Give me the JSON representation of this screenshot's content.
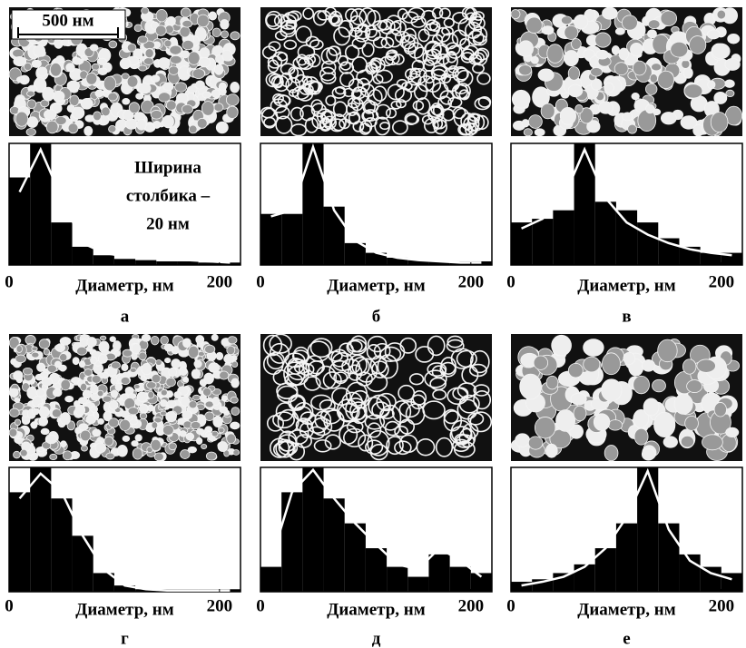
{
  "chart_data": [
    {
      "type": "histogram",
      "label": "а",
      "xlabel": "Диаметр, нм",
      "scale_bar": "500 нм",
      "annotation": [
        "Ширина",
        "столбика –",
        "20 нм"
      ],
      "bins": [
        0,
        20,
        40,
        60,
        80,
        100,
        120,
        140,
        160,
        180,
        200,
        220
      ],
      "values": [
        72,
        100,
        35,
        15,
        8,
        5,
        4,
        3,
        3,
        2,
        2
      ],
      "fit": {
        "x": [
          10,
          30,
          50,
          70,
          90,
          110,
          130,
          150,
          170,
          190,
          210
        ],
        "values": [
          60,
          95,
          55,
          18,
          10,
          7,
          6,
          5,
          4,
          3,
          2
        ]
      },
      "xlim": [
        0,
        220
      ],
      "xticks": [
        0,
        200
      ],
      "ylim": [
        0,
        100
      ],
      "color": "#000000",
      "fit_color": "#ffffff"
    },
    {
      "type": "histogram",
      "label": "б",
      "xlabel": "Диаметр, нм",
      "bins": [
        0,
        20,
        40,
        60,
        80,
        100,
        120,
        140,
        160,
        180,
        200,
        220
      ],
      "values": [
        42,
        42,
        100,
        48,
        18,
        10,
        6,
        4,
        3,
        3,
        3
      ],
      "fit": {
        "x": [
          10,
          30,
          50,
          70,
          90,
          110,
          130,
          150,
          170,
          190,
          210
        ],
        "values": [
          40,
          45,
          97,
          45,
          20,
          10,
          6,
          4,
          3,
          2,
          2
        ]
      },
      "xlim": [
        0,
        220
      ],
      "xticks": [
        0,
        200
      ],
      "ylim": [
        0,
        100
      ],
      "color": "#000000",
      "fit_color": "#ffffff"
    },
    {
      "type": "histogram",
      "label": "в",
      "xlabel": "Диаметр, нм",
      "bins": [
        0,
        20,
        40,
        60,
        80,
        100,
        120,
        140,
        160,
        180,
        200,
        220
      ],
      "values": [
        35,
        38,
        45,
        100,
        52,
        45,
        35,
        22,
        15,
        10,
        10
      ],
      "fit": {
        "x": [
          10,
          30,
          50,
          70,
          90,
          110,
          130,
          150,
          170,
          190,
          210
        ],
        "values": [
          30,
          38,
          55,
          95,
          55,
          35,
          25,
          18,
          13,
          10,
          8
        ]
      },
      "xlim": [
        0,
        220
      ],
      "xticks": [
        0,
        200
      ],
      "ylim": [
        0,
        100
      ],
      "color": "#000000",
      "fit_color": "#ffffff"
    },
    {
      "type": "histogram",
      "label": "г",
      "xlabel": "Диаметр, нм",
      "bins": [
        0,
        20,
        40,
        60,
        80,
        100,
        120,
        140,
        160,
        180,
        200,
        220
      ],
      "values": [
        80,
        100,
        75,
        45,
        15,
        5,
        2,
        2,
        2,
        2,
        2
      ],
      "fit": {
        "x": [
          10,
          30,
          50,
          70,
          90,
          110,
          130,
          150,
          170,
          190,
          210
        ],
        "values": [
          75,
          95,
          80,
          45,
          18,
          5,
          2,
          1,
          1,
          1,
          1
        ]
      },
      "xlim": [
        0,
        220
      ],
      "xticks": [
        0,
        200
      ],
      "ylim": [
        0,
        100
      ],
      "color": "#000000",
      "fit_color": "#ffffff"
    },
    {
      "type": "histogram",
      "label": "д",
      "xlabel": "Диаметр, нм",
      "bins": [
        0,
        20,
        40,
        60,
        80,
        100,
        120,
        140,
        160,
        180,
        200,
        220
      ],
      "values": [
        20,
        80,
        100,
        75,
        55,
        35,
        20,
        12,
        30,
        20,
        15
      ],
      "fit": {
        "x": [
          10,
          30,
          50,
          70,
          90,
          110,
          130,
          150,
          170,
          190,
          210
        ],
        "values": [
          25,
          80,
          98,
          75,
          55,
          38,
          22,
          18,
          35,
          25,
          12
        ]
      },
      "xlim": [
        0,
        220
      ],
      "xticks": [
        0,
        200
      ],
      "ylim": [
        0,
        100
      ],
      "color": "#000000",
      "fit_color": "#ffffff"
    },
    {
      "type": "histogram",
      "label": "е",
      "xlabel": "Диаметр, нм",
      "bins": [
        0,
        20,
        40,
        60,
        80,
        100,
        120,
        140,
        160,
        180,
        200,
        220
      ],
      "values": [
        8,
        10,
        15,
        22,
        35,
        55,
        100,
        55,
        30,
        20,
        15
      ],
      "fit": {
        "x": [
          10,
          30,
          50,
          70,
          90,
          110,
          130,
          150,
          170,
          190,
          210
        ],
        "values": [
          5,
          8,
          12,
          20,
          35,
          60,
          97,
          50,
          25,
          15,
          10
        ]
      },
      "xlim": [
        0,
        220
      ],
      "xticks": [
        0,
        200
      ],
      "ylim": [
        0,
        100
      ],
      "color": "#000000",
      "fit_color": "#ffffff"
    }
  ]
}
